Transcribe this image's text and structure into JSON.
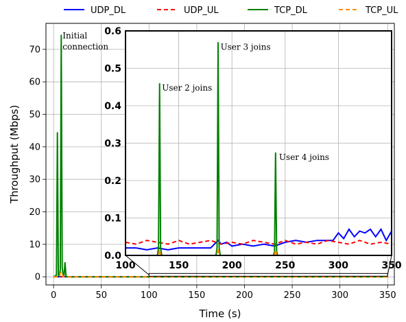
{
  "chart_data": [
    {
      "type": "line",
      "title": "",
      "xlabel": "Time (s)",
      "ylabel": "Throughput (Mbps)",
      "xlim": [
        -8,
        357
      ],
      "ylim": [
        -2.5,
        78
      ],
      "xticks": [
        0,
        50,
        100,
        150,
        200,
        250,
        300,
        350
      ],
      "yticks": [
        0,
        10,
        20,
        30,
        40,
        50,
        60,
        70
      ],
      "grid": true,
      "legend": {
        "position": "top",
        "entries": [
          "UDP_DL",
          "UDP_UL",
          "TCP_DL",
          "TCP_UL"
        ]
      },
      "series": [
        {
          "name": "UDP_DL",
          "color": "#0000ff",
          "style": "solid",
          "x": [
            0,
            5,
            10,
            15,
            20,
            100,
            150,
            200,
            250,
            300,
            350
          ],
          "y": [
            0.02,
            0.02,
            0.03,
            0.02,
            0.02,
            0.01,
            0.02,
            0.03,
            0.04,
            0.05,
            0.06
          ]
        },
        {
          "name": "UDP_UL",
          "color": "#ff0000",
          "style": "dashed",
          "x": [
            0,
            50,
            100,
            150,
            200,
            250,
            300,
            350
          ],
          "y": [
            0.03,
            0.03,
            0.03,
            0.03,
            0.03,
            0.03,
            0.03,
            0.03
          ]
        },
        {
          "name": "TCP_DL",
          "color": "#008000",
          "style": "solid",
          "x": [
            0,
            3,
            4,
            5,
            6,
            7,
            8,
            9,
            10,
            11,
            12,
            13,
            14,
            100,
            350
          ],
          "y": [
            0,
            0.5,
            44.5,
            0.5,
            0.2,
            2,
            74.5,
            3,
            0.3,
            0.5,
            4.5,
            0.3,
            0,
            0,
            0
          ]
        },
        {
          "name": "TCP_UL",
          "color": "#ff8c00",
          "style": "dashed",
          "x": [
            0,
            6,
            7,
            8,
            9,
            10,
            350
          ],
          "y": [
            0,
            0,
            1,
            1.5,
            1,
            0,
            0
          ]
        }
      ],
      "annotations": [
        {
          "text": "Initial connection",
          "x": 8,
          "y": 74
        }
      ]
    },
    {
      "type": "line",
      "title": "",
      "xlabel": "",
      "ylabel": "",
      "xlim": [
        100,
        350
      ],
      "ylim": [
        0,
        0.6
      ],
      "xticks": [
        100,
        150,
        200,
        250,
        300,
        350
      ],
      "yticks": [
        0.0,
        0.1,
        0.2,
        0.3,
        0.4,
        0.5,
        0.6
      ],
      "grid": true,
      "series": [
        {
          "name": "UDP_DL",
          "color": "#0000ff",
          "style": "solid",
          "x": [
            100,
            110,
            120,
            130,
            140,
            150,
            160,
            170,
            180,
            187,
            190,
            195,
            200,
            210,
            220,
            230,
            240,
            250,
            260,
            270,
            280,
            290,
            295,
            300,
            305,
            310,
            315,
            320,
            325,
            330,
            335,
            340,
            345,
            350
          ],
          "y": [
            0.02,
            0.02,
            0.015,
            0.02,
            0.015,
            0.02,
            0.02,
            0.02,
            0.02,
            0.04,
            0.03,
            0.035,
            0.025,
            0.03,
            0.025,
            0.03,
            0.025,
            0.035,
            0.04,
            0.035,
            0.04,
            0.04,
            0.04,
            0.06,
            0.045,
            0.07,
            0.05,
            0.065,
            0.06,
            0.07,
            0.05,
            0.07,
            0.04,
            0.065
          ]
        },
        {
          "name": "UDP_UL",
          "color": "#ff0000",
          "style": "dashed",
          "x": [
            100,
            110,
            120,
            130,
            140,
            150,
            160,
            170,
            180,
            190,
            200,
            210,
            220,
            230,
            240,
            250,
            260,
            270,
            280,
            290,
            300,
            310,
            320,
            330,
            340,
            350
          ],
          "y": [
            0.035,
            0.03,
            0.04,
            0.035,
            0.03,
            0.04,
            0.03,
            0.035,
            0.04,
            0.03,
            0.035,
            0.03,
            0.04,
            0.035,
            0.03,
            0.04,
            0.03,
            0.035,
            0.03,
            0.04,
            0.035,
            0.03,
            0.04,
            0.03,
            0.035,
            0.03
          ]
        },
        {
          "name": "TCP_DL",
          "color": "#008000",
          "style": "solid",
          "x": [
            100,
            130,
            131,
            132,
            133,
            134,
            185,
            186,
            187,
            188,
            189,
            239,
            240,
            241,
            242,
            243,
            350
          ],
          "y": [
            0,
            0,
            0.02,
            0.46,
            0.02,
            0,
            0,
            0.02,
            0.57,
            0.02,
            0,
            0,
            0.01,
            0.275,
            0.01,
            0,
            0
          ]
        },
        {
          "name": "TCP_UL",
          "color": "#ff8c00",
          "style": "dashed",
          "x": [
            100,
            131,
            132,
            133,
            186,
            187,
            188,
            240,
            241,
            242,
            350
          ],
          "y": [
            0,
            0,
            0.015,
            0,
            0,
            0.02,
            0,
            0,
            0.015,
            0,
            0
          ]
        }
      ],
      "annotations": [
        {
          "text": "User 2 joins",
          "x": 133,
          "y": 0.44
        },
        {
          "text": "User 3 joins",
          "x": 188,
          "y": 0.55
        },
        {
          "text": "User 4 joins",
          "x": 243,
          "y": 0.255
        }
      ]
    }
  ]
}
